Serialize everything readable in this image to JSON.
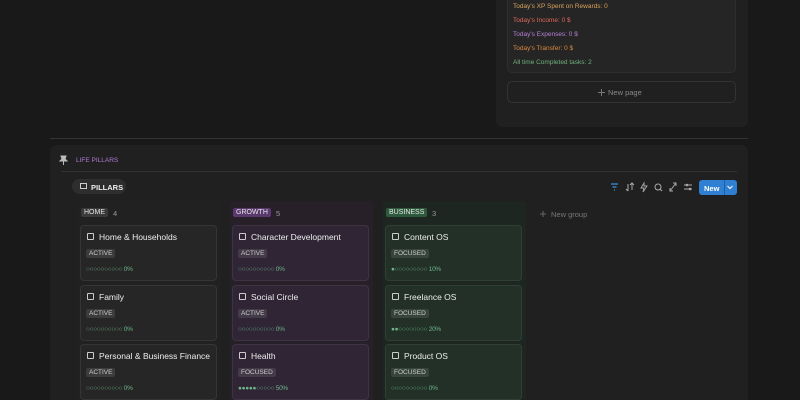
{
  "stats": [
    {
      "text": "Today's XP Spent on Rewards: 0",
      "color": "#d9a35b"
    },
    {
      "text": "Today's Income: 0 $",
      "color": "#e0685a"
    },
    {
      "text": "Today's Expenses: 0 $",
      "color": "#b680d8"
    },
    {
      "text": "Today's Transfer: 0 $",
      "color": "#dc8a3f"
    },
    {
      "text": "All time Completed tasks: 2",
      "color": "#6fb07e"
    }
  ],
  "new_page": "New page",
  "section": {
    "title": "LIFE PILLARS",
    "view_tab": "PILLARS",
    "new_button": "New",
    "new_group": "New group",
    "groups": [
      {
        "name": "HOME",
        "count": 4,
        "color": "#3a3a3a",
        "column": "#212121",
        "card": "#262626",
        "cards": [
          {
            "title": "Home & Households",
            "status": "ACTIVE",
            "progress": "○○○○○○○○○○ 0%"
          },
          {
            "title": "Family",
            "status": "ACTIVE",
            "progress": "○○○○○○○○○○ 0%"
          },
          {
            "title": "Personal & Business Finance",
            "status": "ACTIVE",
            "progress": "○○○○○○○○○○ 0%"
          }
        ]
      },
      {
        "name": "GROWTH",
        "count": 5,
        "color": "#5a3a6e",
        "column": "#272029",
        "card": "#2f2535",
        "cards": [
          {
            "title": "Character Development",
            "status": "ACTIVE",
            "progress": "○○○○○○○○○○ 0%"
          },
          {
            "title": "Social Circle",
            "status": "ACTIVE",
            "progress": "○○○○○○○○○○ 0%"
          },
          {
            "title": "Health",
            "status": "FOCUSED",
            "progress": "●●●●●○○○○○ 50%"
          }
        ]
      },
      {
        "name": "BUSINESS",
        "count": 3,
        "color": "#2d5a3d",
        "column": "#1e2621",
        "card": "#223027",
        "cards": [
          {
            "title": "Content OS",
            "status": "FOCUSED",
            "progress": "●○○○○○○○○○ 10%"
          },
          {
            "title": "Freelance OS",
            "status": "FOCUSED",
            "progress": "●●○○○○○○○○ 20%"
          },
          {
            "title": "Product OS",
            "status": "FOCUSED",
            "progress": "○○○○○○○○○○ 0%"
          }
        ]
      }
    ]
  }
}
